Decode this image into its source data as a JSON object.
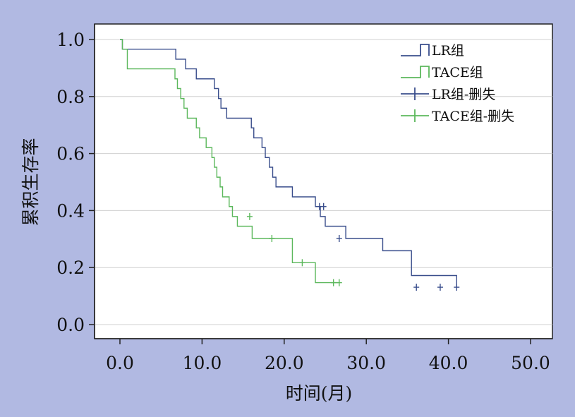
{
  "chart_data": {
    "type": "line",
    "title": "",
    "xlabel": "时间(月)",
    "ylabel": "累积生存率",
    "xlim": [
      0,
      50
    ],
    "ylim": [
      0,
      1
    ],
    "x_ticks": [
      "0.0",
      "10.0",
      "20.0",
      "30.0",
      "40.0",
      "50.0"
    ],
    "y_ticks": [
      "0.0",
      "0.2",
      "0.4",
      "0.6",
      "0.8",
      "1.0"
    ],
    "grid": true,
    "legend_position": "top-right",
    "legend": [
      "LR组",
      "TACE组",
      "LR组-删失",
      "TACE组-删失"
    ],
    "series": [
      {
        "name": "LR组",
        "color": "#3a4e8c",
        "x": [
          0,
          0.3,
          6.8,
          8.0,
          9.3,
          11.5,
          12.0,
          12.3,
          13.0,
          16.0,
          16.3,
          17.3,
          17.7,
          18.2,
          18.6,
          19.0,
          21.0,
          23.8,
          24.4,
          25.0,
          27.5,
          32.0,
          35.5,
          41.0
        ],
        "y": [
          1.0,
          0.966,
          0.931,
          0.897,
          0.862,
          0.828,
          0.793,
          0.759,
          0.724,
          0.69,
          0.655,
          0.621,
          0.586,
          0.552,
          0.517,
          0.483,
          0.448,
          0.414,
          0.379,
          0.345,
          0.302,
          0.259,
          0.172,
          0.131
        ],
        "censored_x": [
          24.3,
          24.8,
          26.7,
          36.1,
          39.0,
          41.0
        ],
        "censored_y": [
          0.414,
          0.414,
          0.302,
          0.131,
          0.131,
          0.131
        ]
      },
      {
        "name": "TACE组",
        "color": "#5cb85c",
        "x": [
          0,
          0.3,
          0.9,
          6.7,
          7.0,
          7.4,
          7.8,
          8.2,
          9.3,
          9.7,
          10.5,
          11.2,
          11.5,
          11.8,
          12.2,
          12.5,
          13.3,
          13.7,
          14.3,
          16.1,
          21.0,
          23.8,
          26.6
        ],
        "y": [
          1.0,
          0.966,
          0.897,
          0.862,
          0.828,
          0.793,
          0.759,
          0.724,
          0.69,
          0.655,
          0.621,
          0.586,
          0.552,
          0.517,
          0.483,
          0.448,
          0.414,
          0.379,
          0.345,
          0.302,
          0.217,
          0.147,
          0.147
        ],
        "censored_x": [
          15.8,
          18.5,
          22.2,
          26.0,
          26.7
        ],
        "censored_y": [
          0.379,
          0.302,
          0.217,
          0.147,
          0.147
        ]
      }
    ]
  }
}
